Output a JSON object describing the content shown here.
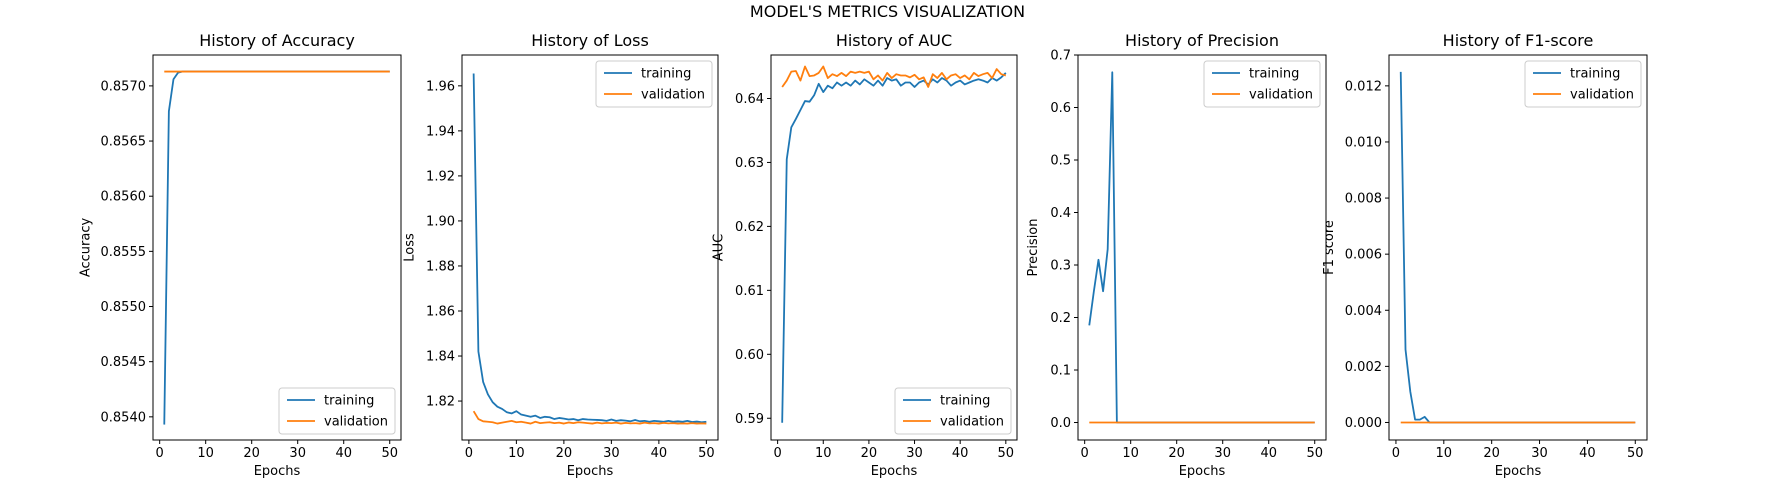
{
  "figure": {
    "suptitle": "MODEL'S METRICS VISUALIZATION"
  },
  "colors": {
    "training": "#1f77b4",
    "validation": "#ff7f0e",
    "axes": "#000000",
    "background": "#ffffff"
  },
  "chart_data": [
    {
      "type": "line",
      "title": "History of Accuracy",
      "xlabel": "Epochs",
      "ylabel": "Accuracy",
      "xlim": [
        -1.45,
        52.45
      ],
      "ylim": [
        0.85379,
        0.85728
      ],
      "xticks": [
        0,
        10,
        20,
        30,
        40,
        50
      ],
      "yticks": [
        0.854,
        0.8545,
        0.855,
        0.8555,
        0.856,
        0.8565,
        0.857
      ],
      "ytick_decimals": 4,
      "legend_loc": "lower right",
      "grid": false,
      "series": [
        {
          "name": "training",
          "color": "#1f77b4",
          "x": [
            1,
            2,
            3,
            4,
            5,
            6,
            7,
            8,
            9,
            10,
            11,
            12,
            13,
            14,
            15,
            16,
            17,
            18,
            19,
            20,
            21,
            22,
            23,
            24,
            25,
            26,
            27,
            28,
            29,
            30,
            31,
            32,
            33,
            34,
            35,
            36,
            37,
            38,
            39,
            40,
            41,
            42,
            43,
            44,
            45,
            46,
            47,
            48,
            49,
            50
          ],
          "y": [
            0.85393,
            0.85677,
            0.85706,
            0.85712,
            0.85713,
            0.85713,
            0.85713,
            0.85713,
            0.85713,
            0.85713,
            0.85713,
            0.85713,
            0.85713,
            0.85713,
            0.85713,
            0.85713,
            0.85713,
            0.85713,
            0.85713,
            0.85713,
            0.85713,
            0.85713,
            0.85713,
            0.85713,
            0.85713,
            0.85713,
            0.85713,
            0.85713,
            0.85713,
            0.85713,
            0.85713,
            0.85713,
            0.85713,
            0.85713,
            0.85713,
            0.85713,
            0.85713,
            0.85713,
            0.85713,
            0.85713,
            0.85713,
            0.85713,
            0.85713,
            0.85713,
            0.85713,
            0.85713,
            0.85713,
            0.85713,
            0.85713,
            0.85713
          ]
        },
        {
          "name": "validation",
          "color": "#ff7f0e",
          "x": [
            1,
            50
          ],
          "y": [
            0.85713,
            0.85713
          ]
        }
      ]
    },
    {
      "type": "line",
      "title": "History of Loss",
      "xlabel": "Epochs",
      "ylabel": "Loss",
      "xlim": [
        -1.45,
        52.45
      ],
      "ylim": [
        1.8027,
        1.9737
      ],
      "xticks": [
        0,
        10,
        20,
        30,
        40,
        50
      ],
      "yticks": [
        1.82,
        1.84,
        1.86,
        1.88,
        1.9,
        1.92,
        1.94,
        1.96
      ],
      "ytick_decimals": 2,
      "legend_loc": "upper right",
      "grid": false,
      "series": [
        {
          "name": "training",
          "color": "#1f77b4",
          "x": [
            1,
            2,
            3,
            4,
            5,
            6,
            7,
            8,
            9,
            10,
            11,
            12,
            13,
            14,
            15,
            16,
            17,
            18,
            19,
            20,
            21,
            22,
            23,
            24,
            25,
            26,
            27,
            28,
            29,
            30,
            31,
            32,
            33,
            34,
            35,
            36,
            37,
            38,
            39,
            40,
            41,
            42,
            43,
            44,
            45,
            46,
            47,
            48,
            49,
            50
          ],
          "y": [
            1.9655,
            1.842,
            1.8285,
            1.823,
            1.8195,
            1.8175,
            1.8165,
            1.815,
            1.8145,
            1.8155,
            1.814,
            1.8135,
            1.813,
            1.8135,
            1.8125,
            1.813,
            1.8128,
            1.812,
            1.8125,
            1.8122,
            1.8118,
            1.812,
            1.8115,
            1.812,
            1.8118,
            1.8117,
            1.8116,
            1.8115,
            1.8112,
            1.8118,
            1.8112,
            1.8115,
            1.8113,
            1.811,
            1.8116,
            1.811,
            1.8112,
            1.8108,
            1.8112,
            1.811,
            1.8108,
            1.8112,
            1.8108,
            1.811,
            1.8108,
            1.8112,
            1.8107,
            1.8109,
            1.8106,
            1.8108
          ]
        },
        {
          "name": "validation",
          "color": "#ff7f0e",
          "x": [
            1,
            2,
            3,
            4,
            5,
            6,
            7,
            8,
            9,
            10,
            11,
            12,
            13,
            14,
            15,
            16,
            17,
            18,
            19,
            20,
            21,
            22,
            23,
            24,
            25,
            26,
            27,
            28,
            29,
            30,
            31,
            32,
            33,
            34,
            35,
            36,
            37,
            38,
            39,
            40,
            41,
            42,
            43,
            44,
            45,
            46,
            47,
            48,
            49,
            50
          ],
          "y": [
            1.8155,
            1.812,
            1.811,
            1.8108,
            1.8106,
            1.81,
            1.8104,
            1.8108,
            1.8112,
            1.8106,
            1.8108,
            1.8104,
            1.81,
            1.8108,
            1.8102,
            1.8104,
            1.8106,
            1.8102,
            1.8104,
            1.81,
            1.8105,
            1.8102,
            1.8106,
            1.8104,
            1.8102,
            1.81,
            1.8104,
            1.8101,
            1.8103,
            1.8102,
            1.8104,
            1.81,
            1.8103,
            1.8101,
            1.8102,
            1.81,
            1.8104,
            1.8101,
            1.8102,
            1.81,
            1.8103,
            1.8101,
            1.8102,
            1.81,
            1.8101,
            1.81,
            1.8102,
            1.81,
            1.8101,
            1.81
          ]
        }
      ]
    },
    {
      "type": "line",
      "title": "History of AUC",
      "xlabel": "Epochs",
      "ylabel": "AUC",
      "xlim": [
        -1.45,
        52.45
      ],
      "ylim": [
        0.5866,
        0.6468
      ],
      "xticks": [
        0,
        10,
        20,
        30,
        40,
        50
      ],
      "yticks": [
        0.59,
        0.6,
        0.61,
        0.62,
        0.63,
        0.64
      ],
      "ytick_decimals": 2,
      "legend_loc": "lower right",
      "grid": false,
      "series": [
        {
          "name": "training",
          "color": "#1f77b4",
          "x": [
            1,
            2,
            3,
            4,
            5,
            6,
            7,
            8,
            9,
            10,
            11,
            12,
            13,
            14,
            15,
            16,
            17,
            18,
            19,
            20,
            21,
            22,
            23,
            24,
            25,
            26,
            27,
            28,
            29,
            30,
            31,
            32,
            33,
            34,
            35,
            36,
            37,
            38,
            39,
            40,
            41,
            42,
            43,
            44,
            45,
            46,
            47,
            48,
            49,
            50
          ],
          "y": [
            0.5893,
            0.6305,
            0.6355,
            0.6368,
            0.6382,
            0.6396,
            0.6395,
            0.6405,
            0.6423,
            0.641,
            0.642,
            0.6416,
            0.6425,
            0.642,
            0.6425,
            0.642,
            0.6428,
            0.6422,
            0.643,
            0.6425,
            0.642,
            0.6428,
            0.642,
            0.6432,
            0.6428,
            0.643,
            0.642,
            0.6425,
            0.6425,
            0.6418,
            0.6425,
            0.6428,
            0.6422,
            0.643,
            0.6425,
            0.6432,
            0.6428,
            0.642,
            0.6425,
            0.6428,
            0.6422,
            0.6425,
            0.6428,
            0.643,
            0.6428,
            0.6425,
            0.6432,
            0.6428,
            0.6433,
            0.644
          ]
        },
        {
          "name": "validation",
          "color": "#ff7f0e",
          "x": [
            1,
            2,
            3,
            4,
            5,
            6,
            7,
            8,
            9,
            10,
            11,
            12,
            13,
            14,
            15,
            16,
            17,
            18,
            19,
            20,
            21,
            22,
            23,
            24,
            25,
            26,
            27,
            28,
            29,
            30,
            31,
            32,
            33,
            34,
            35,
            36,
            37,
            38,
            39,
            40,
            41,
            42,
            43,
            44,
            45,
            46,
            47,
            48,
            49,
            50
          ],
          "y": [
            0.6418,
            0.6428,
            0.6442,
            0.6443,
            0.6428,
            0.645,
            0.6435,
            0.6436,
            0.644,
            0.645,
            0.6432,
            0.6438,
            0.6435,
            0.644,
            0.6435,
            0.6442,
            0.644,
            0.6442,
            0.644,
            0.6442,
            0.643,
            0.6436,
            0.6428,
            0.644,
            0.6432,
            0.6438,
            0.6436,
            0.6436,
            0.6433,
            0.6437,
            0.643,
            0.6433,
            0.6418,
            0.6438,
            0.6432,
            0.644,
            0.643,
            0.6436,
            0.6438,
            0.6432,
            0.6436,
            0.643,
            0.644,
            0.6435,
            0.6438,
            0.644,
            0.6432,
            0.6446,
            0.6438,
            0.6436
          ]
        }
      ]
    },
    {
      "type": "line",
      "title": "History of Precision",
      "xlabel": "Epochs",
      "ylabel": "Precision",
      "xlim": [
        -1.45,
        52.45
      ],
      "ylim": [
        -0.0333,
        0.7
      ],
      "xticks": [
        0,
        10,
        20,
        30,
        40,
        50
      ],
      "yticks": [
        0.0,
        0.1,
        0.2,
        0.3,
        0.4,
        0.5,
        0.6,
        0.7
      ],
      "ytick_decimals": 1,
      "legend_loc": "upper right",
      "grid": false,
      "series": [
        {
          "name": "training",
          "color": "#1f77b4",
          "x": [
            1,
            2,
            3,
            4,
            5,
            6,
            7,
            8,
            50
          ],
          "y": [
            0.185,
            0.25,
            0.31,
            0.25,
            0.33,
            0.667,
            0.0,
            0.0,
            0.0
          ]
        },
        {
          "name": "validation",
          "color": "#ff7f0e",
          "x": [
            1,
            50
          ],
          "y": [
            0.0,
            0.0
          ]
        }
      ]
    },
    {
      "type": "line",
      "title": "History of F1-score",
      "xlabel": "Epochs",
      "ylabel": "F1 score",
      "xlim": [
        -1.45,
        52.45
      ],
      "ylim": [
        -0.000625,
        0.0131
      ],
      "xticks": [
        0,
        10,
        20,
        30,
        40,
        50
      ],
      "yticks": [
        0.0,
        0.002,
        0.004,
        0.006,
        0.008,
        0.01,
        0.012
      ],
      "ytick_decimals": 3,
      "legend_loc": "upper right",
      "grid": false,
      "series": [
        {
          "name": "training",
          "color": "#1f77b4",
          "x": [
            1,
            2,
            3,
            4,
            5,
            6,
            7,
            8,
            50
          ],
          "y": [
            0.0125,
            0.0026,
            0.0011,
            0.0001,
            0.0001,
            0.0002,
            0.0,
            0.0,
            0.0
          ]
        },
        {
          "name": "validation",
          "color": "#ff7f0e",
          "x": [
            1,
            50
          ],
          "y": [
            0.0,
            0.0
          ]
        }
      ]
    }
  ]
}
